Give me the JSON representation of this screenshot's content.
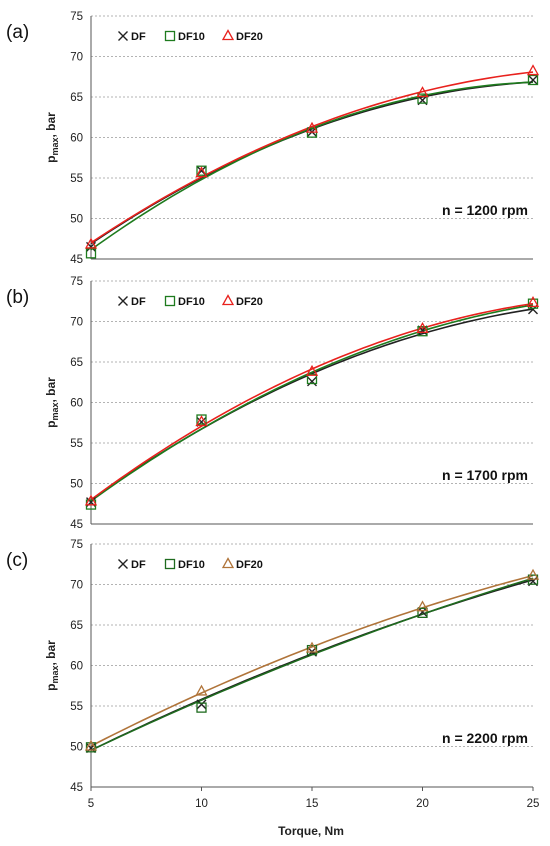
{
  "figure": {
    "xlabel": "Torque, Nm"
  },
  "chart_data": [
    {
      "panel_label": "(a)",
      "type": "scatter",
      "ylabel": "pmax, bar",
      "ylabel_main": "p",
      "ylabel_sub": "max",
      "ylabel_rest": ", bar",
      "annotation": "n = 1200 rpm",
      "x": [
        5,
        10,
        15,
        20,
        25
      ],
      "xlim": [
        5,
        25
      ],
      "ylim": [
        45,
        75
      ],
      "yticks": [
        45,
        50,
        55,
        60,
        65,
        70,
        75
      ],
      "grid": true,
      "legend_position": "top-left",
      "series": [
        {
          "name": "DF",
          "marker": "x",
          "color": "#222222",
          "values": [
            46.5,
            55.9,
            60.7,
            64.6,
            67.1
          ]
        },
        {
          "name": "DF10",
          "marker": "square",
          "color": "#1e7b1e",
          "values": [
            45.7,
            55.9,
            60.6,
            64.8,
            67.1
          ]
        },
        {
          "name": "DF20",
          "marker": "triangle",
          "color": "#e8211d",
          "values": [
            46.8,
            55.6,
            61.1,
            65.5,
            68.2
          ]
        }
      ]
    },
    {
      "panel_label": "(b)",
      "type": "scatter",
      "ylabel": "pmax, bar",
      "ylabel_main": "p",
      "ylabel_sub": "max",
      "ylabel_rest": ", bar",
      "annotation": "n = 1700 rpm",
      "x": [
        5,
        10,
        15,
        20,
        25
      ],
      "xlim": [
        5,
        25
      ],
      "ylim": [
        45,
        75
      ],
      "yticks": [
        45,
        50,
        55,
        60,
        65,
        70,
        75
      ],
      "grid": true,
      "legend_position": "top-left",
      "series": [
        {
          "name": "DF",
          "marker": "x",
          "color": "#222222",
          "values": [
            47.7,
            57.6,
            62.6,
            68.9,
            71.5
          ]
        },
        {
          "name": "DF10",
          "marker": "square",
          "color": "#1e7b1e",
          "values": [
            47.4,
            57.9,
            62.9,
            68.8,
            72.2
          ]
        },
        {
          "name": "DF20",
          "marker": "triangle",
          "color": "#e8211d",
          "values": [
            47.8,
            57.6,
            63.8,
            69.1,
            72.3
          ]
        }
      ]
    },
    {
      "panel_label": "(c)",
      "type": "scatter",
      "ylabel": "pmax, bar",
      "ylabel_main": "p",
      "ylabel_sub": "max",
      "ylabel_rest": ", bar",
      "annotation": "n = 2200 rpm",
      "x": [
        5,
        10,
        15,
        20,
        25
      ],
      "xlim": [
        5,
        25
      ],
      "ylim": [
        45,
        75
      ],
      "yticks": [
        45,
        50,
        55,
        60,
        65,
        70,
        75
      ],
      "grid": true,
      "legend_position": "top-left",
      "series": [
        {
          "name": "DF",
          "marker": "x",
          "color": "#222222",
          "values": [
            49.8,
            55.2,
            61.7,
            66.6,
            70.4
          ]
        },
        {
          "name": "DF10",
          "marker": "square",
          "color": "#1e6b1e",
          "values": [
            49.9,
            54.8,
            61.9,
            66.5,
            70.6
          ]
        },
        {
          "name": "DF20",
          "marker": "triangle",
          "color": "#b0743a",
          "values": [
            50.0,
            56.8,
            62.1,
            67.2,
            71.1
          ]
        }
      ]
    }
  ]
}
